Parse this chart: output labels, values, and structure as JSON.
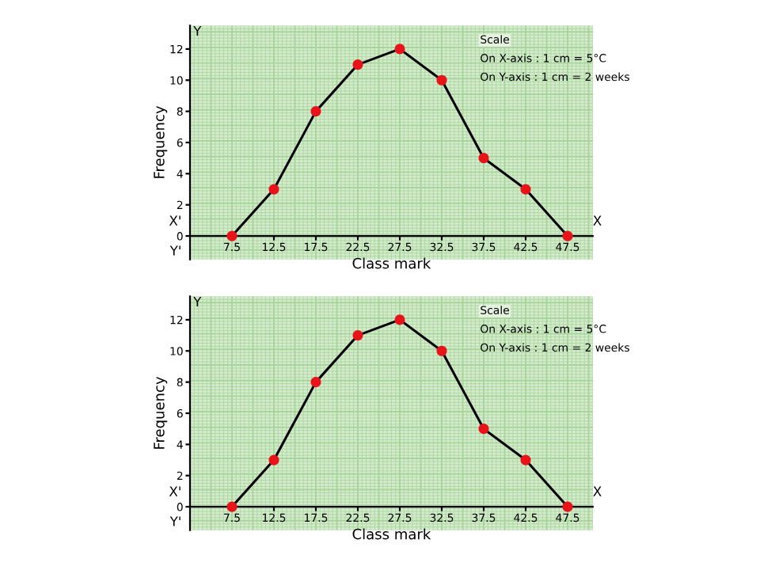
{
  "chart_data": [
    {
      "type": "line",
      "xlabel": "Class mark",
      "ylabel": "Frequency",
      "x": [
        7.5,
        12.5,
        17.5,
        22.5,
        27.5,
        32.5,
        37.5,
        42.5,
        47.5
      ],
      "series": [
        {
          "color": "#000000",
          "values": [
            0,
            3,
            8,
            11,
            12,
            10,
            5,
            3,
            0
          ]
        }
      ],
      "marker": "circle",
      "line_style": "solid",
      "grid": true,
      "legend": false,
      "xlim": [
        2.5,
        50.5
      ],
      "ylim": [
        -1.5,
        13.5
      ],
      "xticks": [
        7.5,
        12.5,
        17.5,
        22.5,
        27.5,
        32.5,
        37.5,
        42.5,
        47.5
      ],
      "yticks": [
        0,
        2,
        4,
        6,
        8,
        10,
        12
      ],
      "annotations": [
        "Scale",
        "On X-axis : 1 cm = 5°C",
        "On Y-axis : 1 cm = 2 weeks",
        "X",
        "X'",
        "Y",
        "Y'"
      ]
    },
    {
      "type": "line",
      "xlabel": "Class mark",
      "ylabel": "Frequency",
      "x": [
        7.5,
        12.5,
        17.5,
        22.5,
        27.5,
        32.5,
        37.5,
        42.5,
        47.5
      ],
      "series": [
        {
          "color": "#000000",
          "values": [
            0,
            3,
            8,
            11,
            12,
            10,
            5,
            3,
            0
          ]
        }
      ],
      "marker": "circle",
      "line_style": "solid",
      "grid": true,
      "legend": false,
      "xlim": [
        2.5,
        50.5
      ],
      "ylim": [
        -1.5,
        13.5
      ],
      "xticks": [
        7.5,
        12.5,
        17.5,
        22.5,
        27.5,
        32.5,
        37.5,
        42.5,
        47.5
      ],
      "yticks": [
        0,
        2,
        4,
        6,
        8,
        10,
        12
      ],
      "annotations": [
        "Scale",
        "On X-axis : 1 cm = 5°C",
        "On Y-axis : 1 cm = 2 weeks",
        "X",
        "X'",
        "Y",
        "Y'"
      ]
    }
  ]
}
